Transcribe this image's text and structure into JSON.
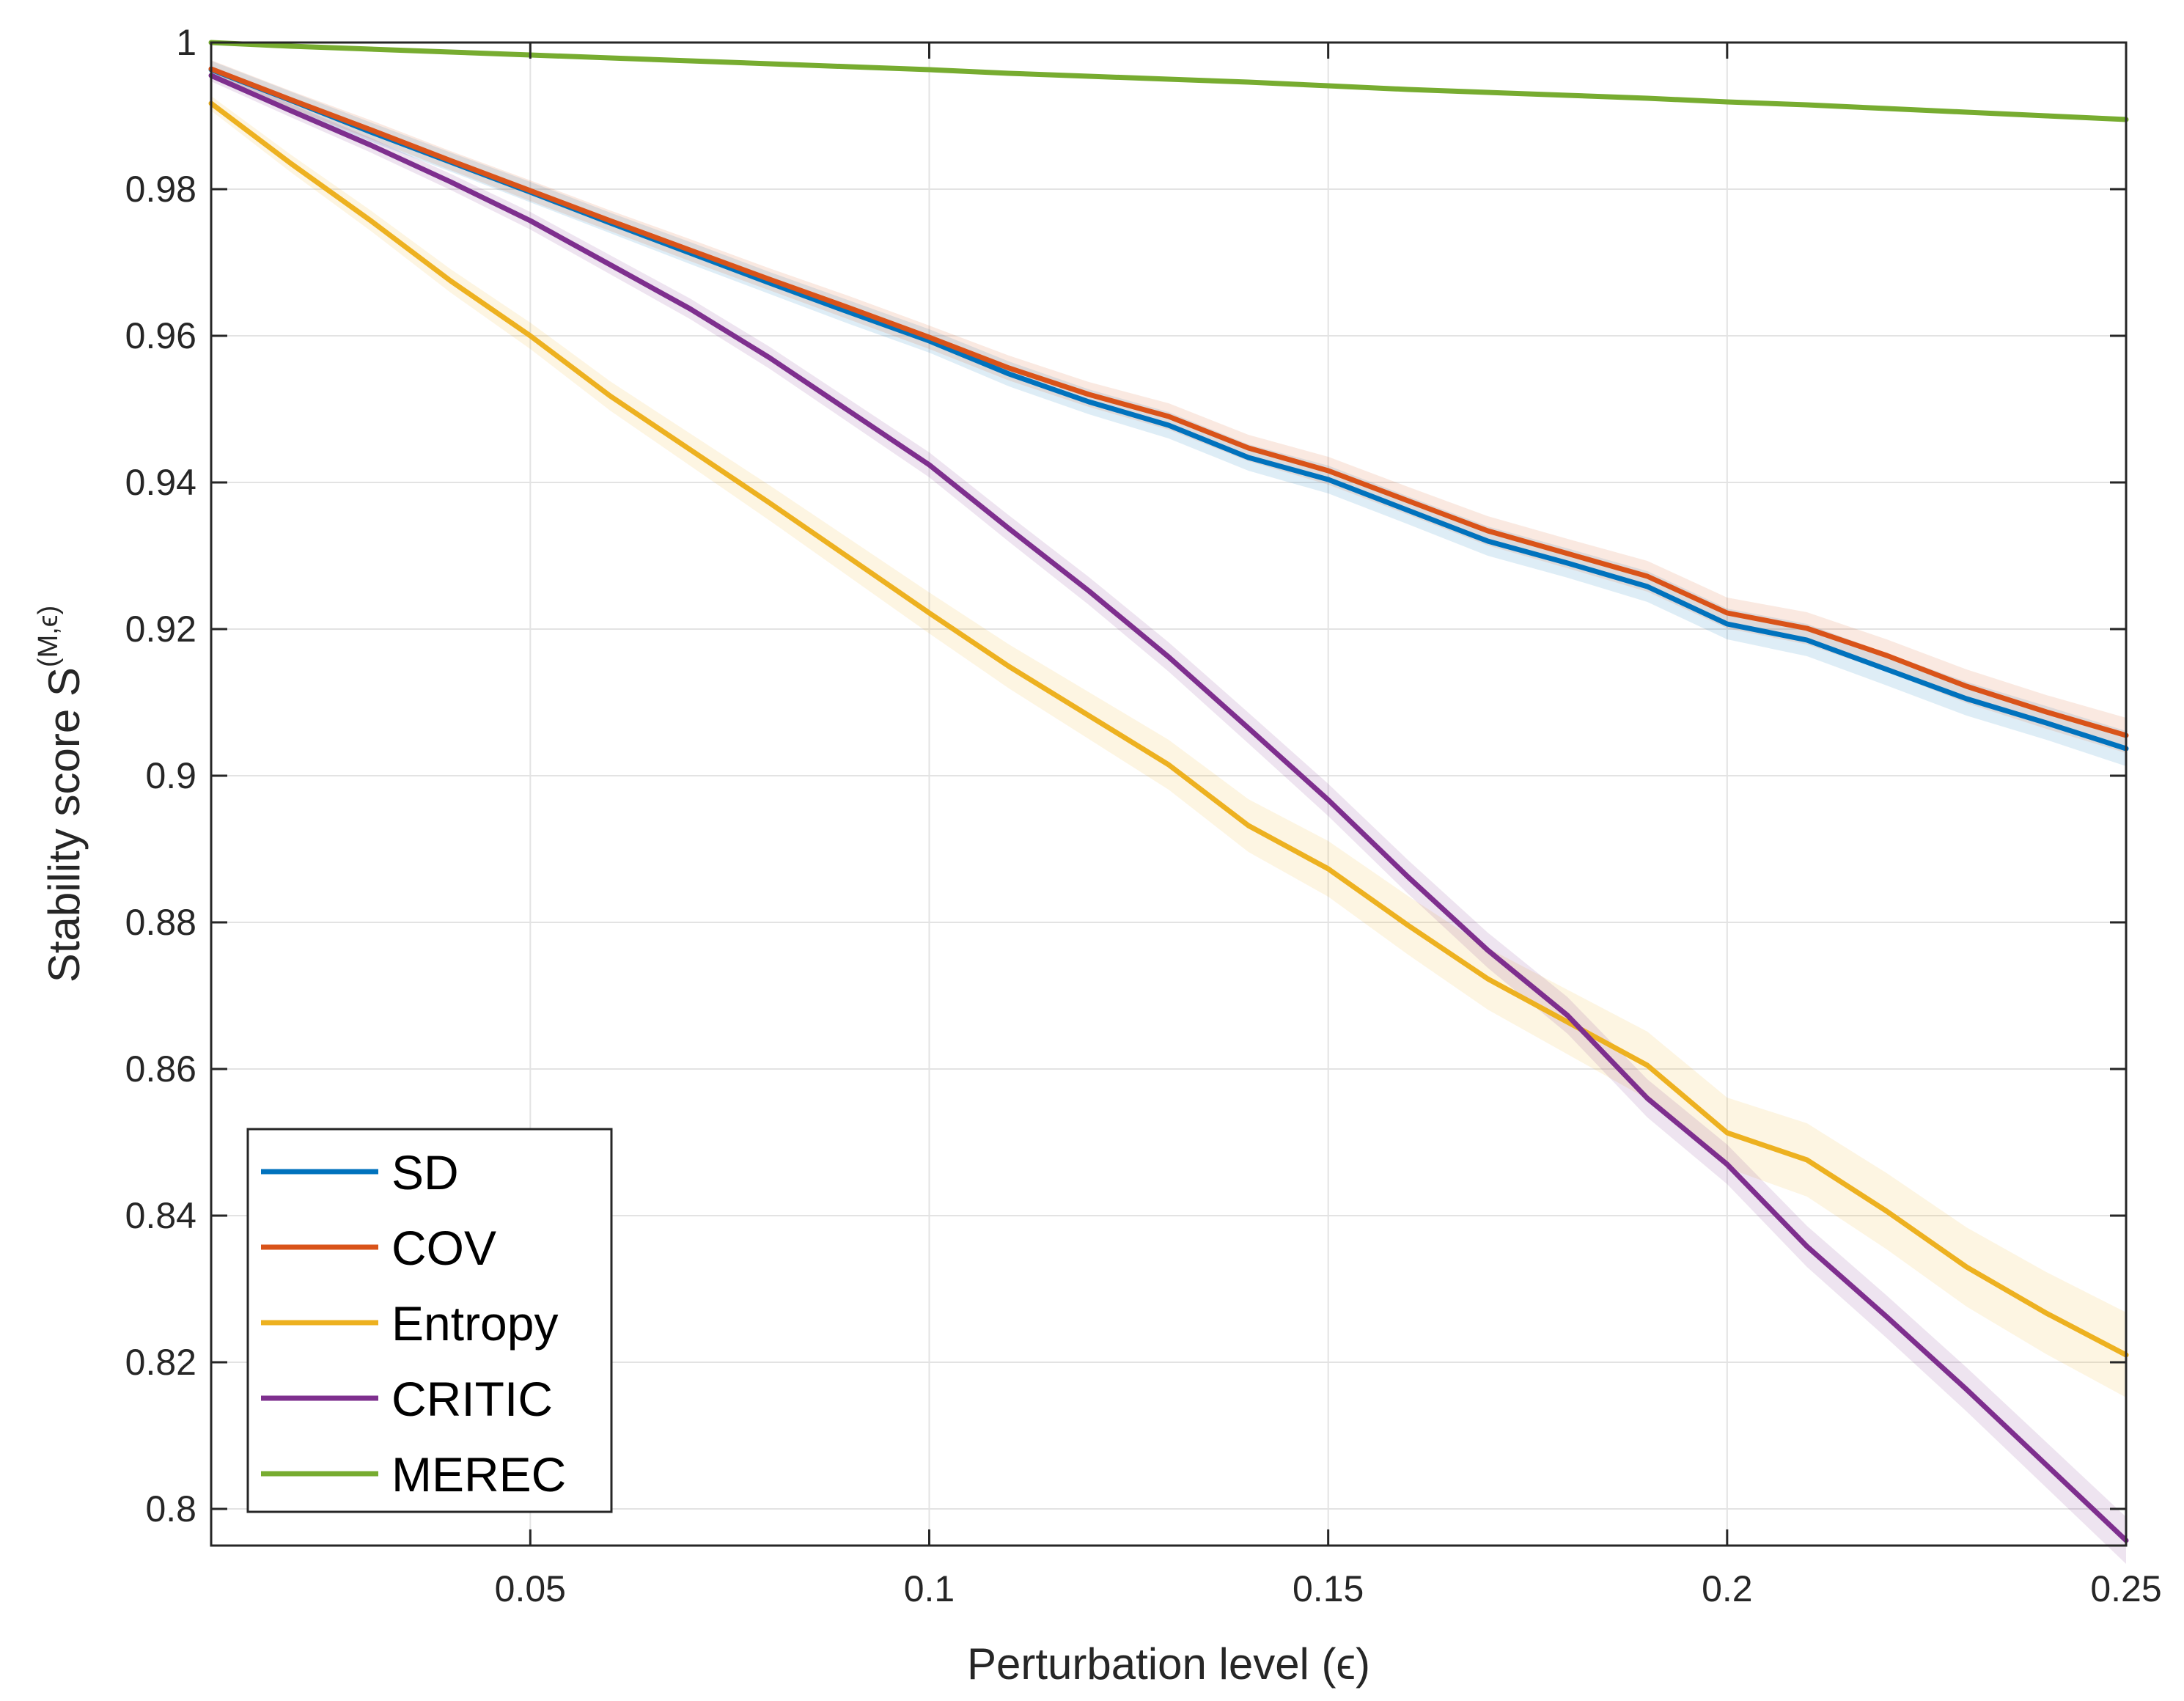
{
  "chart_data": {
    "type": "line",
    "title": "",
    "xlabel": "Perturbation level (ϵ)",
    "ylabel": "Stability score S",
    "ylabel_superscript": "(M,ϵ)",
    "xlim": [
      0.01,
      0.25
    ],
    "ylim": [
      0.795,
      1.0
    ],
    "grid": true,
    "legend_position": "bottom-left",
    "x_ticks": [
      0.05,
      0.1,
      0.15,
      0.2,
      0.25
    ],
    "x_tick_labels": [
      "0.05",
      "0.1",
      "0.15",
      "0.2",
      "0.25"
    ],
    "y_ticks": [
      0.8,
      0.82,
      0.84,
      0.86,
      0.88,
      0.9,
      0.92,
      0.94,
      0.96,
      0.98,
      1.0
    ],
    "y_tick_labels": [
      "0.8",
      "0.82",
      "0.84",
      "0.86",
      "0.88",
      "0.9",
      "0.92",
      "0.94",
      "0.96",
      "0.98",
      "1"
    ],
    "x": [
      0.01,
      0.02,
      0.03,
      0.04,
      0.05,
      0.06,
      0.07,
      0.08,
      0.09,
      0.1,
      0.11,
      0.12,
      0.13,
      0.14,
      0.15,
      0.16,
      0.17,
      0.18,
      0.19,
      0.2,
      0.21,
      0.22,
      0.23,
      0.24,
      0.25
    ],
    "series": [
      {
        "name": "SD",
        "color": "#0072BD",
        "values": [
          0.9963,
          0.9921,
          0.9878,
          0.9837,
          0.9796,
          0.9754,
          0.9713,
          0.9672,
          0.9632,
          0.9593,
          0.9548,
          0.951,
          0.9478,
          0.9434,
          0.9404,
          0.9362,
          0.932,
          0.929,
          0.9258,
          0.9207,
          0.9185,
          0.9145,
          0.9105,
          0.9072,
          0.9037
        ],
        "band": [
          0.0012,
          0.0012,
          0.0013,
          0.0013,
          0.0014,
          0.0014,
          0.0015,
          0.0015,
          0.0016,
          0.0016,
          0.0017,
          0.0017,
          0.0018,
          0.0018,
          0.0019,
          0.0019,
          0.002,
          0.002,
          0.0021,
          0.0021,
          0.0022,
          0.0022,
          0.0023,
          0.0023,
          0.0024
        ]
      },
      {
        "name": "COV",
        "color": "#D95319",
        "values": [
          0.9964,
          0.9922,
          0.9881,
          0.9839,
          0.9798,
          0.9757,
          0.9717,
          0.9677,
          0.9638,
          0.9598,
          0.9556,
          0.952,
          0.949,
          0.9447,
          0.9416,
          0.9375,
          0.9334,
          0.9303,
          0.9272,
          0.9222,
          0.9201,
          0.9164,
          0.9122,
          0.9087,
          0.9055
        ],
        "band": [
          0.0012,
          0.0012,
          0.0013,
          0.0013,
          0.0014,
          0.0014,
          0.0015,
          0.0015,
          0.0016,
          0.0016,
          0.0017,
          0.0017,
          0.0018,
          0.0018,
          0.0019,
          0.0019,
          0.002,
          0.002,
          0.0021,
          0.0021,
          0.0022,
          0.0022,
          0.0023,
          0.0023,
          0.0024
        ]
      },
      {
        "name": "Entropy",
        "color": "#EDB120",
        "values": [
          0.9917,
          0.9835,
          0.9757,
          0.9675,
          0.96,
          0.9518,
          0.9445,
          0.9372,
          0.9297,
          0.9222,
          0.9149,
          0.9082,
          0.9015,
          0.8932,
          0.8873,
          0.8796,
          0.8723,
          0.8664,
          0.8605,
          0.8513,
          0.8476,
          0.8406,
          0.833,
          0.8267,
          0.821
        ],
        "band": [
          0.001,
          0.0012,
          0.0014,
          0.0016,
          0.0018,
          0.002,
          0.0022,
          0.0024,
          0.0026,
          0.0028,
          0.003,
          0.0032,
          0.0034,
          0.0036,
          0.0038,
          0.004,
          0.0042,
          0.0044,
          0.0046,
          0.0048,
          0.005,
          0.0052,
          0.0054,
          0.0056,
          0.0058
        ]
      },
      {
        "name": "CRITIC",
        "color": "#7E2F8E",
        "values": [
          0.9955,
          0.9907,
          0.986,
          0.981,
          0.9757,
          0.9697,
          0.9637,
          0.957,
          0.9497,
          0.9424,
          0.9337,
          0.9252,
          0.9162,
          0.9065,
          0.8967,
          0.8862,
          0.8762,
          0.8673,
          0.856,
          0.847,
          0.8358,
          0.8262,
          0.8163,
          0.806,
          0.7957
        ],
        "band": [
          0.0008,
          0.0009,
          0.001,
          0.0011,
          0.0012,
          0.0013,
          0.0014,
          0.0015,
          0.0016,
          0.0017,
          0.0018,
          0.0019,
          0.002,
          0.0021,
          0.0022,
          0.0023,
          0.0024,
          0.0025,
          0.0026,
          0.0027,
          0.0028,
          0.0029,
          0.003,
          0.0031,
          0.0032
        ]
      },
      {
        "name": "MEREC",
        "color": "#77AC30",
        "values": [
          1.0,
          0.9995,
          0.9991,
          0.9987,
          0.9983,
          0.9979,
          0.9975,
          0.9971,
          0.9967,
          0.9963,
          0.9958,
          0.9954,
          0.995,
          0.9946,
          0.9941,
          0.9936,
          0.9932,
          0.9928,
          0.9924,
          0.9919,
          0.9915,
          0.991,
          0.9905,
          0.99,
          0.9895
        ],
        "band": [
          0.0002,
          0.0002,
          0.0002,
          0.0002,
          0.0002,
          0.0002,
          0.0002,
          0.0002,
          0.0002,
          0.0002,
          0.0002,
          0.0002,
          0.0002,
          0.0002,
          0.0002,
          0.0002,
          0.0002,
          0.0002,
          0.0002,
          0.0002,
          0.0002,
          0.0002,
          0.0002,
          0.0002,
          0.0002
        ]
      }
    ]
  }
}
